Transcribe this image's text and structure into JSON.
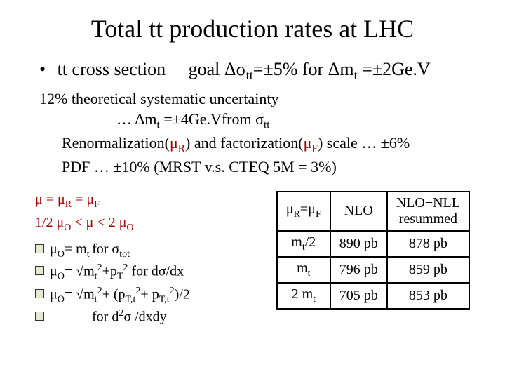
{
  "title": "Total tt production rates at LHC",
  "bullet": {
    "label": "tt cross section",
    "goal_prefix": "goal ",
    "goal_formula": "Δσ_tt=±5% for Δm_t =±2Ge.V"
  },
  "sub": {
    "line1": "12% theoretical systematic uncertainty",
    "line2": "… Δm_t =±4Ge.Vfrom σ_tt",
    "line3_pre": "Renormalization(",
    "line3_muR": "μ_R",
    "line3_mid": ") and factorization(",
    "line3_muF": "μ_F",
    "line3_post": ") scale … ±6%",
    "line4": "PDF … ±10% (MRST v.s. CTEQ 5M = 3%)"
  },
  "mu": {
    "eq1": "μ = μ_R = μ_F",
    "eq2": "1/2 μ_O < μ < 2 μ_O",
    "def1": "μ_O= m_t for σ_tot",
    "def2": "μ_O= √(m_t^2+p_T^2) for dσ/dx",
    "def3": "μ_O= √(m_t^2+ (p_{T,t}^2+ p_{T,t}^2)/2)",
    "def4": "for d^2σ /dxdy"
  },
  "table": {
    "h1": "μ_R=μ_F",
    "h2": "NLO",
    "h3_line1": "NLO+NLL",
    "h3_line2": "resummed",
    "rows": [
      {
        "c1": "m_t/2",
        "c2": "890 pb",
        "c3": "878 pb"
      },
      {
        "c1": "m_t",
        "c2": "796 pb",
        "c3": "859 pb"
      },
      {
        "c1": "2 m_t",
        "c2": "705 pb",
        "c3": "853 pb"
      }
    ]
  },
  "colors": {
    "accent": "#a00000",
    "text": "#000000",
    "bg": "#ffffff"
  }
}
